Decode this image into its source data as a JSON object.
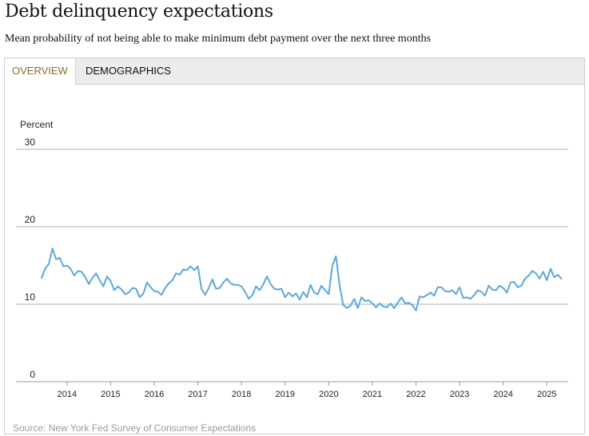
{
  "header": {
    "title": "Debt delinquency expectations",
    "subtitle": "Mean probability of not being able to make minimum debt payment over the next three months"
  },
  "tabs": [
    {
      "label": "OVERVIEW",
      "active": true
    },
    {
      "label": "DEMOGRAPHICS",
      "active": false
    }
  ],
  "source": "Source: New York Fed Survey of Consumer Expectations",
  "colors": {
    "line": "#5aa9dc",
    "active_tab_text": "#8a6f2c",
    "grid": "#999999",
    "source_text": "#9a9a9a"
  },
  "chart_data": {
    "type": "line",
    "title": "",
    "xlabel": "",
    "ylabel": "Percent",
    "ylim": [
      0,
      30
    ],
    "yticks": [
      0,
      10,
      20,
      30
    ],
    "xlim": [
      "2013-06",
      "2025-06"
    ],
    "xticks": [
      "2014",
      "2015",
      "2016",
      "2017",
      "2018",
      "2019",
      "2020",
      "2021",
      "2022",
      "2023",
      "2024",
      "2025"
    ],
    "grid": true,
    "series": [
      {
        "name": "",
        "x": [
          "2013-06",
          "2013-07",
          "2013-08",
          "2013-09",
          "2013-10",
          "2013-11",
          "2013-12",
          "2014-01",
          "2014-02",
          "2014-03",
          "2014-04",
          "2014-05",
          "2014-06",
          "2014-07",
          "2014-08",
          "2014-09",
          "2014-10",
          "2014-11",
          "2014-12",
          "2015-01",
          "2015-02",
          "2015-03",
          "2015-04",
          "2015-05",
          "2015-06",
          "2015-07",
          "2015-08",
          "2015-09",
          "2015-10",
          "2015-11",
          "2015-12",
          "2016-01",
          "2016-02",
          "2016-03",
          "2016-04",
          "2016-05",
          "2016-06",
          "2016-07",
          "2016-08",
          "2016-09",
          "2016-10",
          "2016-11",
          "2016-12",
          "2017-01",
          "2017-02",
          "2017-03",
          "2017-04",
          "2017-05",
          "2017-06",
          "2017-07",
          "2017-08",
          "2017-09",
          "2017-10",
          "2017-11",
          "2017-12",
          "2018-01",
          "2018-02",
          "2018-03",
          "2018-04",
          "2018-05",
          "2018-06",
          "2018-07",
          "2018-08",
          "2018-09",
          "2018-10",
          "2018-11",
          "2018-12",
          "2019-01",
          "2019-02",
          "2019-03",
          "2019-04",
          "2019-05",
          "2019-06",
          "2019-07",
          "2019-08",
          "2019-09",
          "2019-10",
          "2019-11",
          "2019-12",
          "2020-01",
          "2020-02",
          "2020-03",
          "2020-04",
          "2020-05",
          "2020-06",
          "2020-07",
          "2020-08",
          "2020-09",
          "2020-10",
          "2020-11",
          "2020-12",
          "2021-01",
          "2021-02",
          "2021-03",
          "2021-04",
          "2021-05",
          "2021-06",
          "2021-07",
          "2021-08",
          "2021-09",
          "2021-10",
          "2021-11",
          "2021-12",
          "2022-01",
          "2022-02",
          "2022-03",
          "2022-04",
          "2022-05",
          "2022-06",
          "2022-07",
          "2022-08",
          "2022-09",
          "2022-10",
          "2022-11",
          "2022-12",
          "2023-01",
          "2023-02",
          "2023-03",
          "2023-04",
          "2023-05",
          "2023-06",
          "2023-07",
          "2023-08",
          "2023-09",
          "2023-10",
          "2023-11",
          "2023-12",
          "2024-01",
          "2024-02",
          "2024-03",
          "2024-04",
          "2024-05",
          "2024-06",
          "2024-07",
          "2024-08",
          "2024-09",
          "2024-10",
          "2024-11",
          "2024-12",
          "2025-01",
          "2025-02",
          "2025-03",
          "2025-04",
          "2025-05"
        ],
        "values": [
          13.4,
          14.6,
          15.2,
          17.2,
          15.8,
          16.0,
          14.9,
          15.0,
          14.6,
          13.7,
          14.3,
          14.2,
          13.5,
          12.6,
          13.4,
          14.0,
          13.1,
          12.3,
          13.6,
          13.0,
          11.8,
          12.3,
          11.9,
          11.3,
          11.5,
          12.1,
          12.0,
          10.9,
          11.4,
          12.8,
          12.2,
          11.7,
          11.6,
          11.2,
          12.1,
          12.7,
          13.1,
          14.0,
          13.8,
          14.5,
          14.4,
          14.9,
          14.4,
          14.9,
          12.0,
          11.2,
          12.1,
          13.2,
          12.0,
          12.1,
          12.8,
          13.3,
          12.7,
          12.5,
          12.5,
          12.3,
          11.6,
          10.7,
          11.2,
          12.3,
          11.8,
          12.6,
          13.6,
          12.6,
          12.0,
          11.9,
          12.0,
          10.9,
          11.5,
          11.0,
          11.4,
          10.6,
          11.6,
          10.9,
          12.5,
          11.5,
          11.3,
          12.4,
          11.8,
          11.3,
          15.0,
          16.2,
          12.4,
          9.9,
          9.5,
          9.8,
          10.7,
          9.5,
          10.9,
          10.4,
          10.5,
          10.1,
          9.6,
          10.1,
          9.7,
          9.6,
          10.1,
          9.5,
          10.2,
          10.9,
          10.1,
          10.2,
          9.9,
          9.2,
          11.0,
          10.9,
          11.2,
          11.5,
          11.1,
          12.2,
          12.2,
          11.7,
          11.6,
          11.8,
          11.3,
          12.2,
          10.8,
          10.9,
          10.7,
          11.2,
          11.8,
          11.6,
          11.1,
          12.4,
          11.9,
          11.8,
          12.4,
          12.1,
          11.5,
          12.8,
          12.9,
          12.2,
          12.4,
          13.3,
          13.7,
          14.3,
          14.0,
          13.3,
          14.2,
          13.1,
          14.6,
          13.5,
          13.8,
          13.3
        ]
      }
    ],
    "source": "Source: New York Fed Survey of Consumer Expectations"
  }
}
